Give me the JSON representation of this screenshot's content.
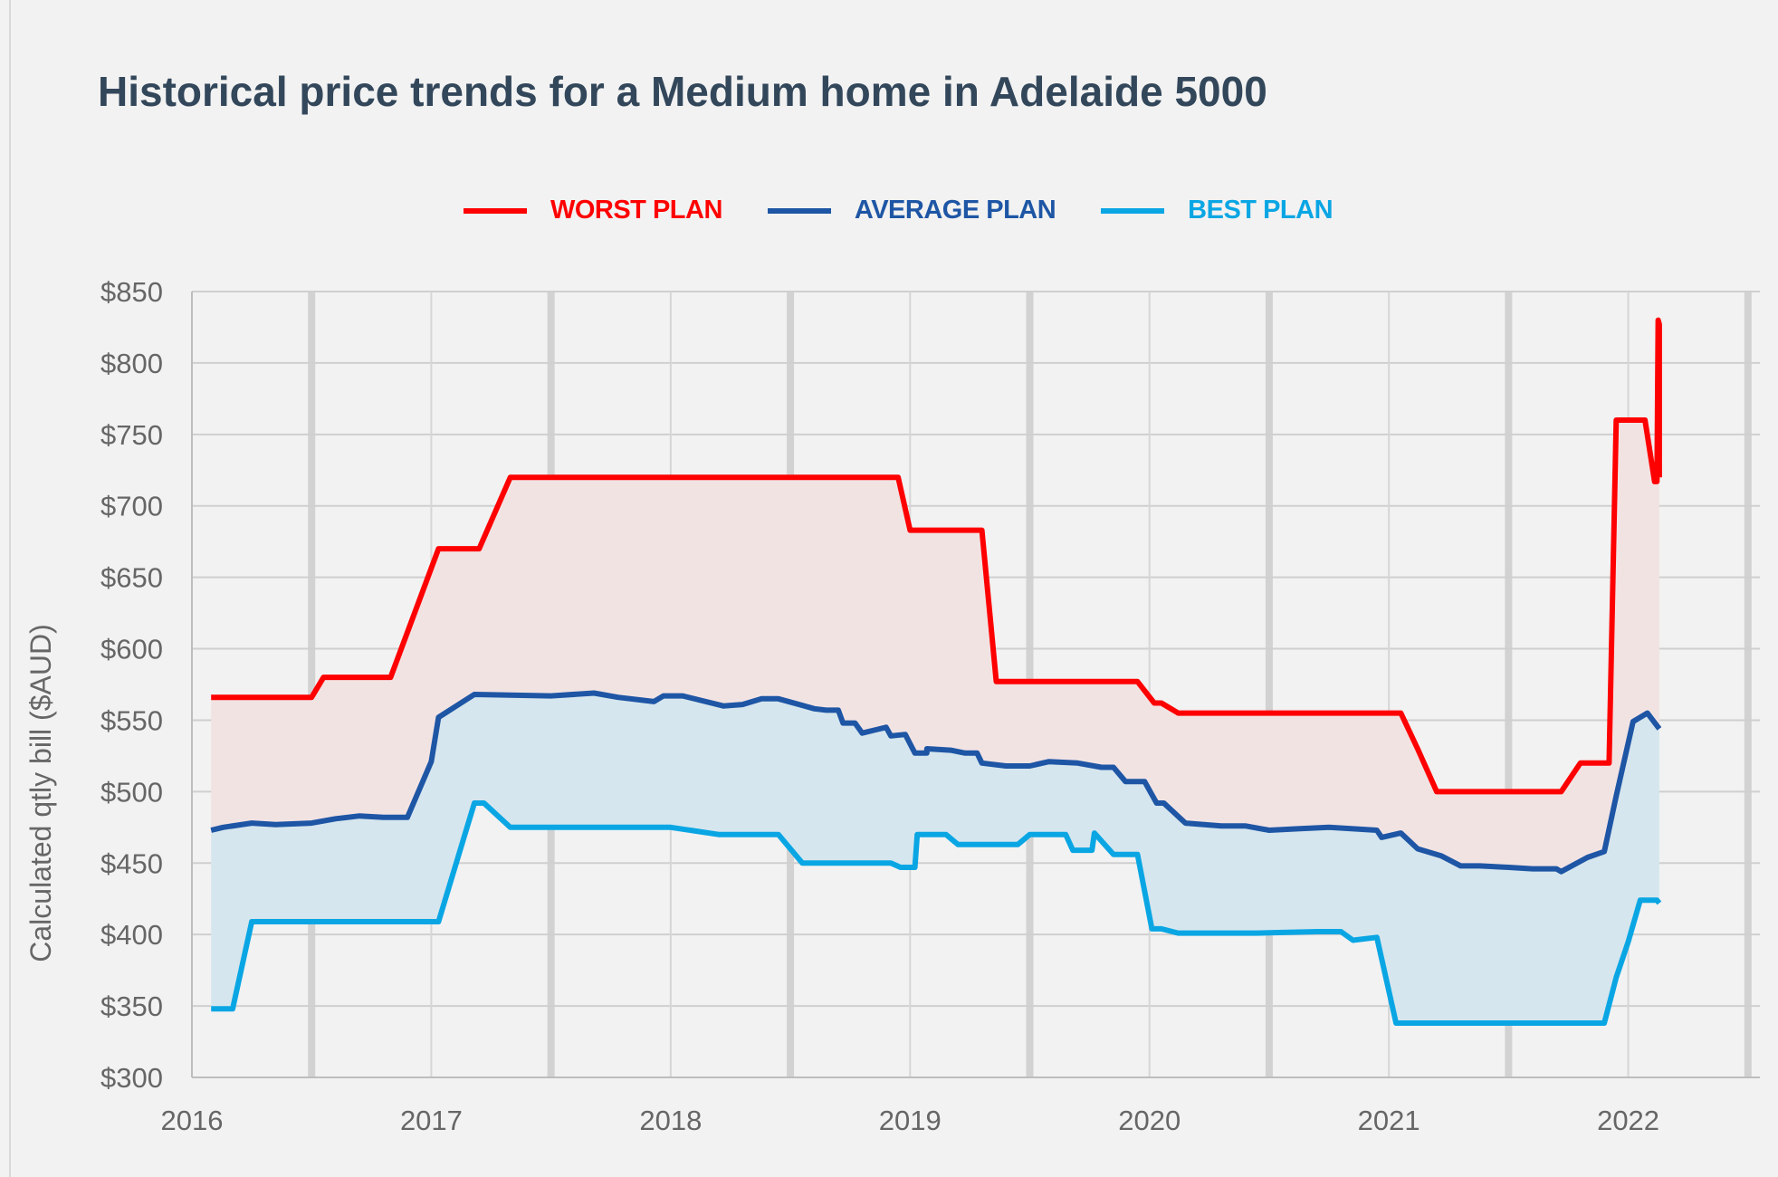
{
  "title": "Historical price trends for a Medium home in Adelaide 5000",
  "chart_data": {
    "type": "line",
    "title": "Historical price trends for a Medium home in Adelaide 5000",
    "xlabel": "",
    "ylabel": "Calculated qtly bill ($AUD)",
    "xlim": [
      2016,
      2022.55
    ],
    "ylim": [
      300,
      850
    ],
    "yticks": [
      300,
      350,
      400,
      450,
      500,
      550,
      600,
      650,
      700,
      750,
      800,
      850
    ],
    "ytick_labels": [
      "$300",
      "$350",
      "$400",
      "$450",
      "$500",
      "$550",
      "$600",
      "$650",
      "$700",
      "$750",
      "$800",
      "$850"
    ],
    "xticks": [
      2016,
      2017,
      2018,
      2019,
      2020,
      2021,
      2022
    ],
    "xtick_labels": [
      "2016",
      "2017",
      "2018",
      "2019",
      "2020",
      "2021",
      "2022"
    ],
    "legend_position": "top-center",
    "grid": true,
    "series": [
      {
        "name": "WORST PLAN",
        "color": "#ff0000",
        "fill": "#f2e3e3",
        "points": [
          [
            2016.08,
            566
          ],
          [
            2016.5,
            566
          ],
          [
            2016.55,
            580
          ],
          [
            2016.8,
            580
          ],
          [
            2016.83,
            580
          ],
          [
            2017.03,
            670
          ],
          [
            2017.2,
            670
          ],
          [
            2017.33,
            720
          ],
          [
            2018.95,
            720
          ],
          [
            2019.0,
            683
          ],
          [
            2019.3,
            683
          ],
          [
            2019.36,
            577
          ],
          [
            2019.95,
            577
          ],
          [
            2020.02,
            562
          ],
          [
            2020.05,
            562
          ],
          [
            2020.12,
            555
          ],
          [
            2021.05,
            555
          ],
          [
            2021.12,
            530
          ],
          [
            2021.2,
            500
          ],
          [
            2021.72,
            500
          ],
          [
            2021.8,
            520
          ],
          [
            2021.92,
            520
          ],
          [
            2021.95,
            760
          ],
          [
            2022.07,
            760
          ],
          [
            2022.11,
            717
          ],
          [
            2022.12,
            717
          ],
          [
            2022.125,
            830
          ],
          [
            2022.13,
            827
          ],
          [
            2022.13,
            720
          ]
        ]
      },
      {
        "name": "AVERAGE PLAN",
        "color": "#1e56a5",
        "fill": "#d6e6ee",
        "points": [
          [
            2016.08,
            473
          ],
          [
            2016.13,
            475
          ],
          [
            2016.25,
            478
          ],
          [
            2016.35,
            477
          ],
          [
            2016.5,
            478
          ],
          [
            2016.6,
            481
          ],
          [
            2016.7,
            483
          ],
          [
            2016.8,
            482
          ],
          [
            2016.9,
            482
          ],
          [
            2017.0,
            521
          ],
          [
            2017.03,
            552
          ],
          [
            2017.18,
            568
          ],
          [
            2017.5,
            567
          ],
          [
            2017.68,
            569
          ],
          [
            2017.78,
            566
          ],
          [
            2017.93,
            563
          ],
          [
            2017.97,
            567
          ],
          [
            2018.05,
            567
          ],
          [
            2018.22,
            560
          ],
          [
            2018.3,
            561
          ],
          [
            2018.38,
            565
          ],
          [
            2018.45,
            565
          ],
          [
            2018.6,
            558
          ],
          [
            2018.65,
            557
          ],
          [
            2018.7,
            557
          ],
          [
            2018.72,
            548
          ],
          [
            2018.77,
            548
          ],
          [
            2018.8,
            541
          ],
          [
            2018.85,
            543
          ],
          [
            2018.9,
            545
          ],
          [
            2018.92,
            539
          ],
          [
            2018.98,
            540
          ],
          [
            2019.02,
            527
          ],
          [
            2019.07,
            527
          ],
          [
            2019.07,
            530
          ],
          [
            2019.17,
            529
          ],
          [
            2019.23,
            527
          ],
          [
            2019.28,
            527
          ],
          [
            2019.3,
            520
          ],
          [
            2019.4,
            518
          ],
          [
            2019.5,
            518
          ],
          [
            2019.58,
            521
          ],
          [
            2019.7,
            520
          ],
          [
            2019.8,
            517
          ],
          [
            2019.85,
            517
          ],
          [
            2019.9,
            507
          ],
          [
            2019.98,
            507
          ],
          [
            2020.03,
            492
          ],
          [
            2020.06,
            492
          ],
          [
            2020.15,
            478
          ],
          [
            2020.3,
            476
          ],
          [
            2020.4,
            476
          ],
          [
            2020.5,
            473
          ],
          [
            2020.62,
            474
          ],
          [
            2020.75,
            475
          ],
          [
            2020.85,
            474
          ],
          [
            2020.95,
            473
          ],
          [
            2020.97,
            468
          ],
          [
            2021.05,
            471
          ],
          [
            2021.12,
            460
          ],
          [
            2021.22,
            455
          ],
          [
            2021.3,
            448
          ],
          [
            2021.38,
            448
          ],
          [
            2021.5,
            447
          ],
          [
            2021.6,
            446
          ],
          [
            2021.7,
            446
          ],
          [
            2021.72,
            444
          ],
          [
            2021.83,
            454
          ],
          [
            2021.9,
            458
          ],
          [
            2021.95,
            497
          ],
          [
            2022.02,
            549
          ],
          [
            2022.08,
            555
          ],
          [
            2022.13,
            544
          ]
        ]
      },
      {
        "name": "BEST PLAN",
        "color": "#0aa6e4",
        "fill": "#f2f2f2",
        "points": [
          [
            2016.08,
            348
          ],
          [
            2016.17,
            348
          ],
          [
            2016.25,
            409
          ],
          [
            2016.5,
            409
          ],
          [
            2016.9,
            409
          ],
          [
            2017.03,
            409
          ],
          [
            2017.18,
            492
          ],
          [
            2017.22,
            492
          ],
          [
            2017.33,
            475
          ],
          [
            2017.6,
            475
          ],
          [
            2018.0,
            475
          ],
          [
            2018.2,
            470
          ],
          [
            2018.45,
            470
          ],
          [
            2018.55,
            450
          ],
          [
            2018.92,
            450
          ],
          [
            2018.96,
            447
          ],
          [
            2019.02,
            447
          ],
          [
            2019.03,
            470
          ],
          [
            2019.15,
            470
          ],
          [
            2019.2,
            463
          ],
          [
            2019.45,
            463
          ],
          [
            2019.5,
            470
          ],
          [
            2019.65,
            470
          ],
          [
            2019.68,
            459
          ],
          [
            2019.76,
            459
          ],
          [
            2019.77,
            471
          ],
          [
            2019.85,
            456
          ],
          [
            2019.95,
            456
          ],
          [
            2020.01,
            404
          ],
          [
            2020.05,
            404
          ],
          [
            2020.12,
            401
          ],
          [
            2020.45,
            401
          ],
          [
            2020.7,
            402
          ],
          [
            2020.8,
            402
          ],
          [
            2020.85,
            396
          ],
          [
            2020.95,
            398
          ],
          [
            2021.03,
            338
          ],
          [
            2021.6,
            338
          ],
          [
            2021.9,
            338
          ],
          [
            2021.95,
            370
          ],
          [
            2022.0,
            395
          ],
          [
            2022.05,
            424
          ],
          [
            2022.12,
            424
          ],
          [
            2022.13,
            422
          ]
        ]
      }
    ]
  },
  "legend": [
    {
      "label": "WORST PLAN",
      "color": "#ff0000"
    },
    {
      "label": "AVERAGE PLAN",
      "color": "#1e56a5"
    },
    {
      "label": "BEST PLAN",
      "color": "#0aa6e4"
    }
  ]
}
